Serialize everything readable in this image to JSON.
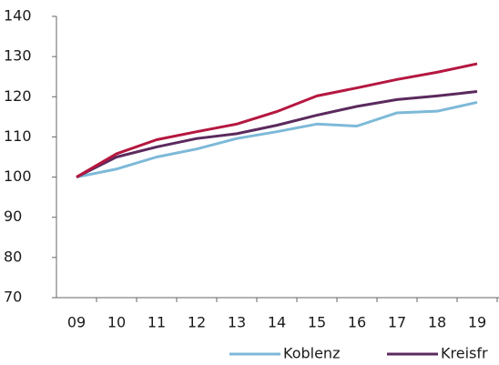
{
  "chart_data": {
    "type": "line",
    "categories": [
      "09",
      "10",
      "11",
      "12",
      "13",
      "14",
      "15",
      "16",
      "17",
      "18",
      "19"
    ],
    "series": [
      {
        "name": "Koblenz",
        "color": "#7db9d8",
        "values": [
          100,
          102,
          105,
          107,
          109.6,
          111.3,
          113.2,
          112.7,
          116,
          116.4,
          118.6
        ]
      },
      {
        "name": "Kreisfr",
        "color": "#5b2a5e",
        "values": [
          100,
          105,
          107.5,
          109.6,
          110.8,
          112.9,
          115.4,
          117.6,
          119.3,
          120.2,
          121.3
        ]
      },
      {
        "color": "#b5173f",
        "values": [
          100,
          105.8,
          109.3,
          111.3,
          113.2,
          116.3,
          120.2,
          122.2,
          124.3,
          126.1,
          128.2
        ]
      }
    ],
    "ylim": [
      70,
      140
    ],
    "yticks": [
      70,
      80,
      90,
      100,
      110,
      120,
      130,
      140
    ]
  }
}
